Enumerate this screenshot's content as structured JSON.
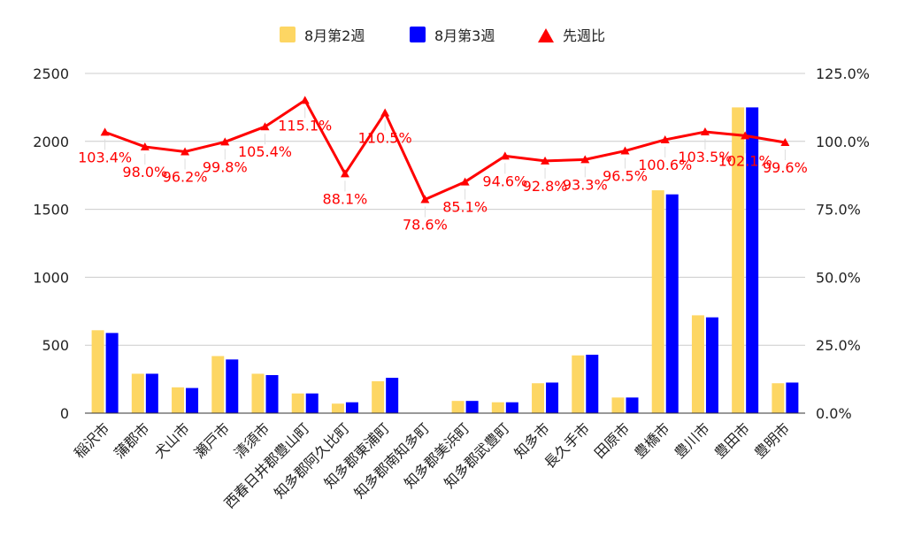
{
  "chart_data": {
    "type": "bar",
    "categories": [
      "稲沢市",
      "蒲郡市",
      "犬山市",
      "瀬戸市",
      "清須市",
      "西春日井郡豊山町",
      "知多郡阿久比町",
      "知多郡東浦町",
      "知多郡南知多町",
      "知多郡美浜町",
      "知多郡武豊町",
      "知多市",
      "長久手市",
      "田原市",
      "豊橋市",
      "豊川市",
      "豊田市",
      "豊明市"
    ],
    "series": [
      {
        "name": "8月第2週",
        "type": "bar",
        "axis": "left",
        "color": "#FDD663",
        "values": [
          610,
          290,
          190,
          420,
          290,
          145,
          70,
          235,
          0,
          90,
          80,
          220,
          425,
          115,
          1640,
          720,
          2250,
          220
        ]
      },
      {
        "name": "8月第3週",
        "type": "bar",
        "axis": "left",
        "color": "#0000FF",
        "values": [
          590,
          290,
          185,
          395,
          280,
          145,
          80,
          260,
          0,
          90,
          80,
          225,
          430,
          115,
          1610,
          705,
          2250,
          225
        ]
      },
      {
        "name": "先週比",
        "type": "line",
        "axis": "right",
        "color": "#FF0000",
        "values": [
          103.4,
          98.0,
          96.2,
          99.8,
          105.4,
          115.1,
          88.1,
          110.5,
          78.6,
          85.1,
          94.6,
          92.8,
          93.3,
          96.5,
          100.6,
          103.5,
          102.1,
          99.6
        ],
        "labels": [
          "103.4%",
          "98.0%",
          "96.2%",
          "99.8%",
          "105.4%",
          "115.1%",
          "88.1%",
          "110.5%",
          "78.6%",
          "85.1%",
          "94.6%",
          "92.8%",
          "93.3%",
          "96.5%",
          "100.6%",
          "103.5%",
          "102.1%",
          "99.6%"
        ]
      }
    ],
    "y_left": {
      "min": 0,
      "max": 2500,
      "ticks": [
        "0",
        "500",
        "1000",
        "1500",
        "2000",
        "2500"
      ]
    },
    "y_right": {
      "min": 0,
      "max": 125,
      "ticks": [
        "0.0%",
        "25.0%",
        "50.0%",
        "75.0%",
        "100.0%",
        "125.0%"
      ]
    },
    "grid": true,
    "legend": "top-center"
  }
}
